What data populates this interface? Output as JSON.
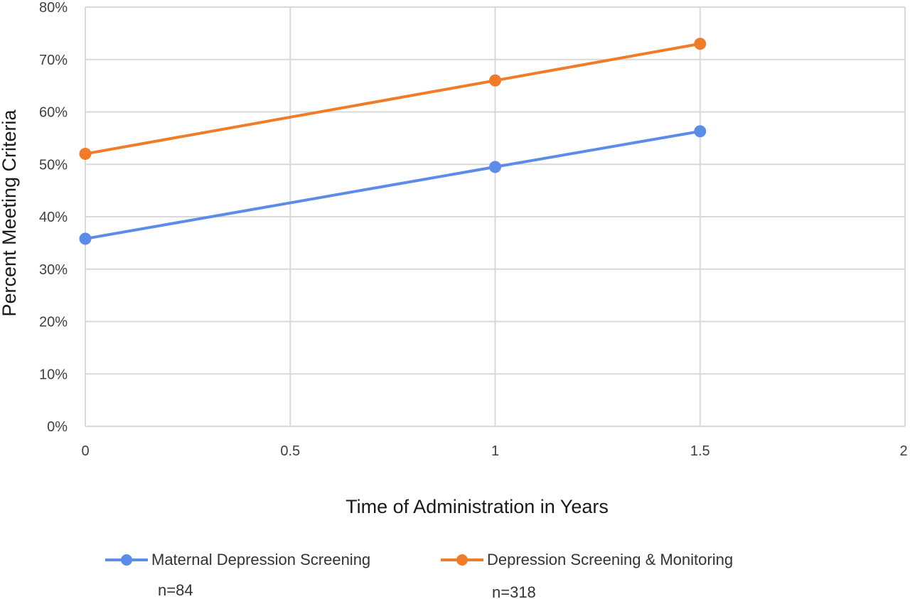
{
  "chart_data": {
    "type": "line",
    "title": "",
    "xlabel": "Time of Administration in Years",
    "ylabel": "Percent Meeting Criteria",
    "xlim": [
      0,
      2
    ],
    "ylim": [
      0,
      0.8
    ],
    "x_ticks": [
      "0",
      "0.5",
      "1",
      "1.5",
      "2"
    ],
    "y_ticks": [
      "0%",
      "10%",
      "20%",
      "30%",
      "40%",
      "50%",
      "60%",
      "70%",
      "80%"
    ],
    "grid": true,
    "legend_position": "bottom",
    "series": [
      {
        "name": "Maternal Depression Screening",
        "color": "#5b8de8",
        "x": [
          0,
          1,
          1.5
        ],
        "y": [
          0.358,
          0.495,
          0.563
        ],
        "n_label": "n=84"
      },
      {
        "name": "Depression Screening & Monitoring",
        "color": "#f07c2a",
        "x": [
          0,
          1,
          1.5
        ],
        "y": [
          0.52,
          0.66,
          0.73
        ],
        "n_label": "n=318"
      }
    ]
  }
}
